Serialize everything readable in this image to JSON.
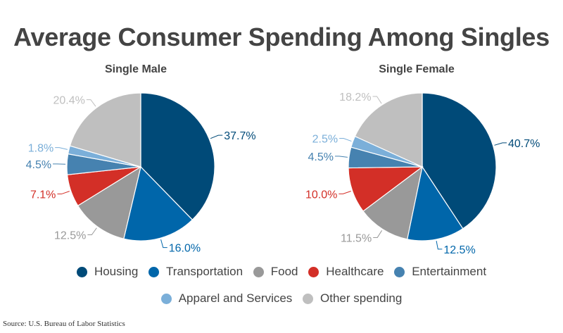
{
  "title": "Average Consumer Spending Among Singles",
  "source": "Source: U.S. Bureau of Labor Statistics",
  "chart_data": [
    {
      "type": "pie",
      "title": "Single Male",
      "categories": [
        "Housing",
        "Transportation",
        "Food",
        "Healthcare",
        "Entertainment",
        "Apparel and Services",
        "Other spending"
      ],
      "values": [
        37.7,
        16.0,
        12.5,
        7.1,
        4.5,
        1.8,
        20.4
      ],
      "labels": [
        "37.7%",
        "16.0%",
        "12.5%",
        "7.1%",
        "4.5%",
        "1.8%",
        "20.4%"
      ]
    },
    {
      "type": "pie",
      "title": "Single Female",
      "categories": [
        "Housing",
        "Transportation",
        "Food",
        "Healthcare",
        "Entertainment",
        "Apparel and Services",
        "Other spending"
      ],
      "values": [
        40.7,
        12.5,
        11.5,
        10.0,
        4.5,
        2.5,
        18.2
      ],
      "labels": [
        "40.7%",
        "12.5%",
        "11.5%",
        "10.0%",
        "4.5%",
        "2.5%",
        "18.2%"
      ]
    }
  ],
  "legend": [
    {
      "label": "Housing",
      "color": "#004a78"
    },
    {
      "label": "Transportation",
      "color": "#0066aa"
    },
    {
      "label": "Food",
      "color": "#999999"
    },
    {
      "label": "Healthcare",
      "color": "#d32f27"
    },
    {
      "label": "Entertainment",
      "color": "#4682b0"
    },
    {
      "label": "Apparel and Services",
      "color": "#7bafd9"
    },
    {
      "label": "Other spending",
      "color": "#bfbfbf"
    }
  ]
}
